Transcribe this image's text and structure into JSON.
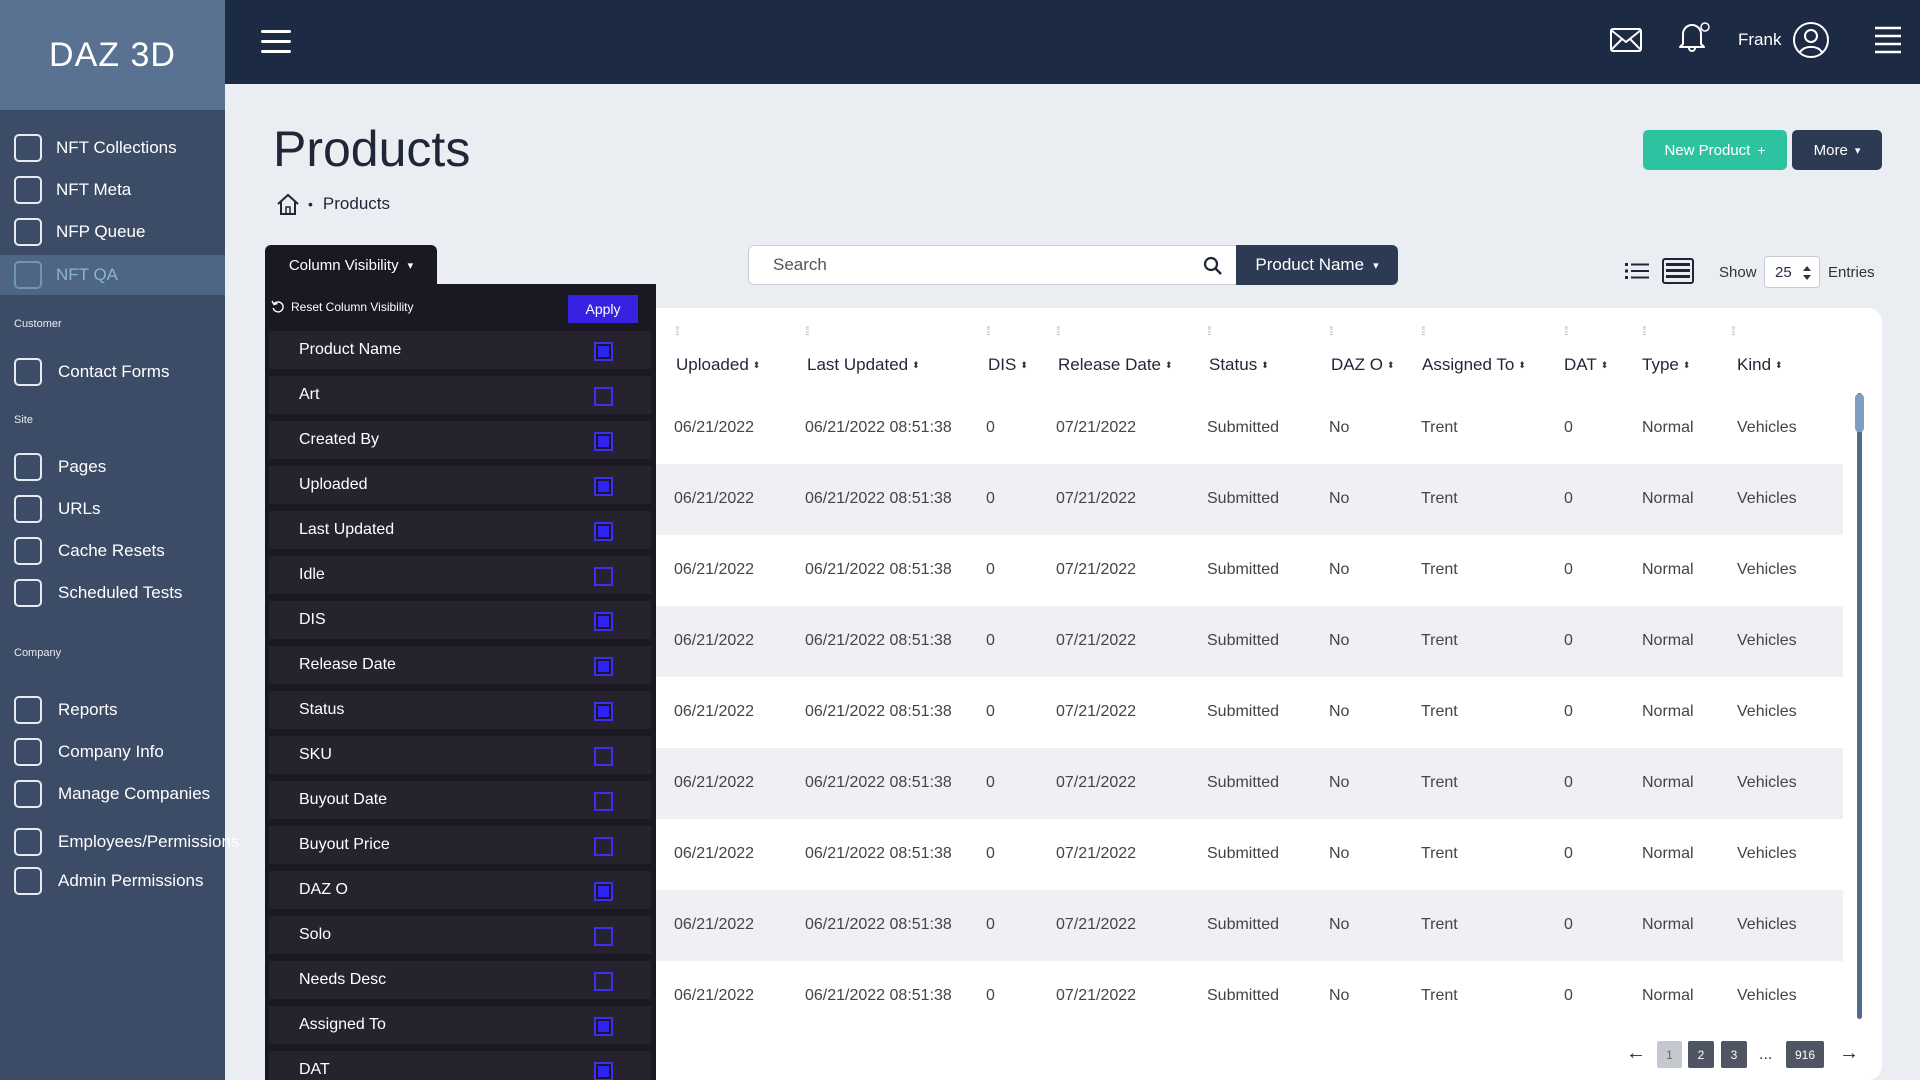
{
  "sidebar": {
    "brand": "DAZ 3D",
    "sections": [
      "Customer",
      "Site",
      "Company"
    ],
    "items": [
      {
        "label": "NFT Collections",
        "active": false
      },
      {
        "label": "NFT Meta",
        "active": false
      },
      {
        "label": "NFP Queue",
        "active": false
      },
      {
        "label": "NFT QA",
        "active": true
      },
      {
        "label": "Contact Forms",
        "active": false
      },
      {
        "label": "Pages",
        "active": false
      },
      {
        "label": "URLs",
        "active": false
      },
      {
        "label": "Cache Resets",
        "active": false
      },
      {
        "label": "Scheduled Tests",
        "active": false
      },
      {
        "label": "Reports",
        "active": false
      },
      {
        "label": "Company Info",
        "active": false
      },
      {
        "label": "Manage Companies",
        "active": false
      },
      {
        "label": "Employees/Permissions",
        "active": false
      },
      {
        "label": "Admin Permissions",
        "active": false
      }
    ]
  },
  "topbar": {
    "user_name": "Frank",
    "icons": [
      "menu-icon",
      "mail-icon",
      "bell-icon",
      "user-circle-icon",
      "hamburger-menu-icon"
    ]
  },
  "page": {
    "title": "Products",
    "breadcrumb": {
      "current": "Products"
    },
    "new_button": "New Product",
    "new_button_symbol": "+",
    "more_button": "More",
    "dropdown_caret": "▾"
  },
  "search": {
    "placeholder": "Search",
    "field": "Product Name"
  },
  "view_controls": {
    "show_label": "Show",
    "page_size": "25",
    "entries_label": "Entries"
  },
  "column_visibility": {
    "toggle_label": "Column Visibility",
    "reset_label": "Reset Column Visibility",
    "apply_label": "Apply",
    "columns": [
      {
        "label": "Product Name",
        "checked": true
      },
      {
        "label": "Art",
        "checked": false
      },
      {
        "label": "Created By",
        "checked": true
      },
      {
        "label": "Uploaded",
        "checked": true
      },
      {
        "label": "Last Updated",
        "checked": true
      },
      {
        "label": "Idle",
        "checked": false
      },
      {
        "label": "DIS",
        "checked": true
      },
      {
        "label": "Release Date",
        "checked": true
      },
      {
        "label": "Status",
        "checked": true
      },
      {
        "label": "SKU",
        "checked": false
      },
      {
        "label": "Buyout Date",
        "checked": false
      },
      {
        "label": "Buyout Price",
        "checked": false
      },
      {
        "label": "DAZ O",
        "checked": true
      },
      {
        "label": "Solo",
        "checked": false
      },
      {
        "label": "Needs Desc",
        "checked": false
      },
      {
        "label": "Assigned To",
        "checked": true
      },
      {
        "label": "DAT",
        "checked": true
      }
    ]
  },
  "table": {
    "headers": [
      "Uploaded",
      "Last Updated",
      "DIS",
      "Release Date",
      "Status",
      "DAZ O",
      "Assigned To",
      "DAT",
      "Type",
      "Kind"
    ],
    "rows": [
      [
        "06/21/2022",
        "06/21/2022 08:51:38",
        "0",
        "07/21/2022",
        "Submitted",
        "No",
        "Trent",
        "0",
        "Normal",
        "Vehicles"
      ],
      [
        "06/21/2022",
        "06/21/2022 08:51:38",
        "0",
        "07/21/2022",
        "Submitted",
        "No",
        "Trent",
        "0",
        "Normal",
        "Vehicles"
      ],
      [
        "06/21/2022",
        "06/21/2022 08:51:38",
        "0",
        "07/21/2022",
        "Submitted",
        "No",
        "Trent",
        "0",
        "Normal",
        "Vehicles"
      ],
      [
        "06/21/2022",
        "06/21/2022 08:51:38",
        "0",
        "07/21/2022",
        "Submitted",
        "No",
        "Trent",
        "0",
        "Normal",
        "Vehicles"
      ],
      [
        "06/21/2022",
        "06/21/2022 08:51:38",
        "0",
        "07/21/2022",
        "Submitted",
        "No",
        "Trent",
        "0",
        "Normal",
        "Vehicles"
      ],
      [
        "06/21/2022",
        "06/21/2022 08:51:38",
        "0",
        "07/21/2022",
        "Submitted",
        "No",
        "Trent",
        "0",
        "Normal",
        "Vehicles"
      ],
      [
        "06/21/2022",
        "06/21/2022 08:51:38",
        "0",
        "07/21/2022",
        "Submitted",
        "No",
        "Trent",
        "0",
        "Normal",
        "Vehicles"
      ],
      [
        "06/21/2022",
        "06/21/2022 08:51:38",
        "0",
        "07/21/2022",
        "Submitted",
        "No",
        "Trent",
        "0",
        "Normal",
        "Vehicles"
      ],
      [
        "06/21/2022",
        "06/21/2022 08:51:38",
        "0",
        "07/21/2022",
        "Submitted",
        "No",
        "Trent",
        "0",
        "Normal",
        "Vehicles"
      ]
    ]
  },
  "pagination": {
    "prev": "←",
    "next": "→",
    "pages": [
      "1",
      "2",
      "3"
    ],
    "ellipsis": "...",
    "last": "916",
    "current": "1"
  },
  "colors": {
    "sidebar_bg": "#3c4c66",
    "topbar_bg": "#1d2a44",
    "accent_green": "#2ec3a0",
    "apply_blue": "#3622e0",
    "panel_bg": "#1a1823"
  }
}
